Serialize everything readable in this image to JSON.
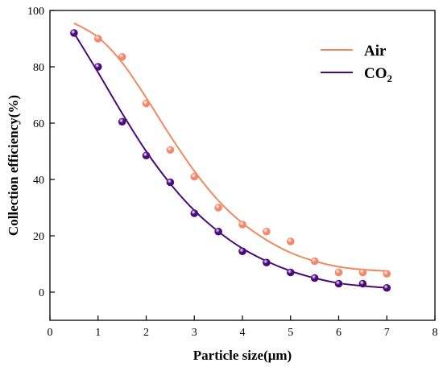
{
  "chart_data": {
    "type": "scatter",
    "title": "",
    "xlabel": "Particle size(μm)",
    "ylabel": "Collection efficiency(%)",
    "xlim": [
      0,
      8
    ],
    "ylim": [
      -10,
      100
    ],
    "x_ticks": [
      0,
      1,
      2,
      3,
      4,
      5,
      6,
      7,
      8
    ],
    "y_ticks": [
      0,
      20,
      40,
      60,
      80,
      100
    ],
    "grid": false,
    "legend_position": "top-right",
    "series": [
      {
        "name": "Air",
        "color": "#f4876b",
        "line_color": "#f08a5d",
        "x": [
          1,
          1.5,
          2,
          2.5,
          3,
          3.5,
          4,
          4.5,
          5,
          5.5,
          6,
          6.5,
          7
        ],
        "y": [
          90,
          83.5,
          67,
          50.5,
          41,
          30,
          24,
          21.5,
          18,
          11,
          7,
          7,
          6.5
        ],
        "fit_x": [
          0.5,
          1,
          1.5,
          2,
          2.5,
          3,
          3.5,
          4,
          4.5,
          5,
          5.5,
          6,
          6.5,
          7
        ],
        "fit_y": [
          95.5,
          90.5,
          81.5,
          69,
          55.5,
          43,
          32.5,
          24.5,
          18.5,
          14,
          11,
          9,
          8,
          7.5
        ]
      },
      {
        "name": "CO2",
        "legend_main": "CO",
        "legend_sub": "2",
        "color": "#4b0a7a",
        "line_color": "#4b0a7a",
        "x": [
          0.5,
          1,
          1.5,
          2,
          2.5,
          3,
          3.5,
          4,
          4.5,
          5,
          5.5,
          6,
          6.5,
          7
        ],
        "y": [
          92,
          80,
          60.5,
          48.5,
          39,
          28,
          21.5,
          14.5,
          10.5,
          7,
          5,
          3,
          3,
          1.5
        ],
        "fit_x": [
          0.5,
          1,
          1.5,
          2,
          2.5,
          3,
          3.5,
          4,
          4.5,
          5,
          5.5,
          6,
          6.5,
          7
        ],
        "fit_y": [
          92,
          78,
          63.5,
          50,
          38.5,
          29,
          21.5,
          15.5,
          11,
          7.5,
          5,
          3.2,
          2.2,
          1.5
        ]
      }
    ]
  }
}
